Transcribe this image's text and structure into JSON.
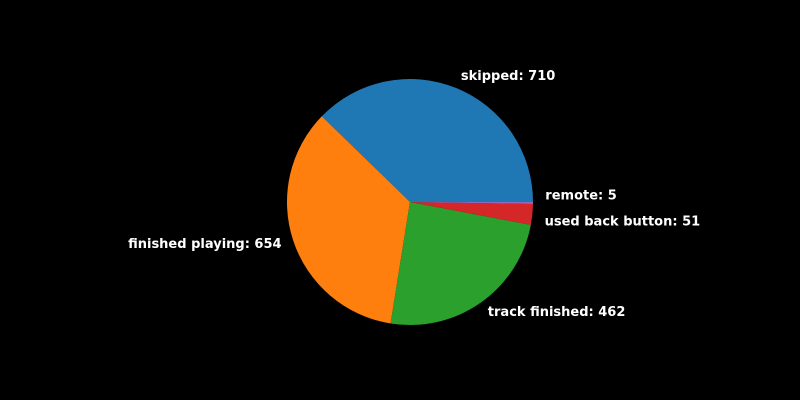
{
  "chart_data": {
    "type": "pie",
    "title": "",
    "start_angle_deg": 0,
    "direction": "counterclockwise",
    "background": "#000000",
    "label_color": "#ffffff",
    "slices": [
      {
        "label": "skipped",
        "value": 710,
        "text": "skipped: 710",
        "color": "#1f77b4"
      },
      {
        "label": "finished playing",
        "value": 654,
        "text": "finished playing: 654",
        "color": "#ff7f0e"
      },
      {
        "label": "track finished",
        "value": 462,
        "text": "track finished: 462",
        "color": "#2ca02c"
      },
      {
        "label": "used back button",
        "value": 51,
        "text": "used back button: 51",
        "color": "#d62728"
      },
      {
        "label": "remote",
        "value": 5,
        "text": "remote: 5",
        "color": "#9467bd"
      }
    ]
  }
}
